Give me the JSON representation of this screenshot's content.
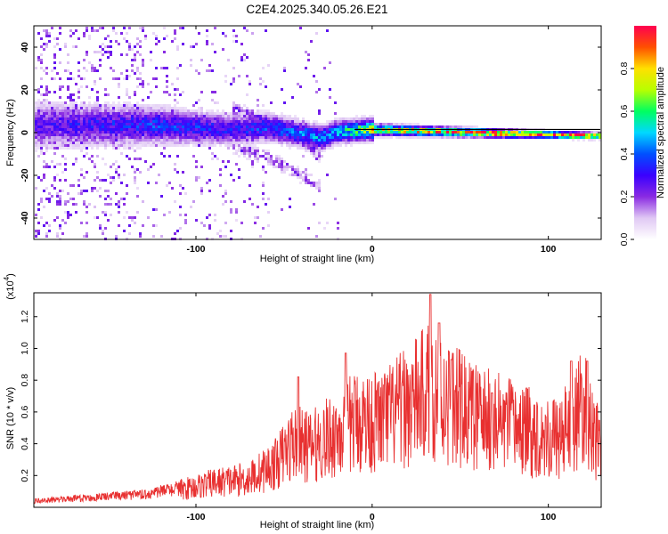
{
  "title": "C2E4.2025.340.05.26.E21",
  "chart_data": [
    {
      "type": "heatmap",
      "name": "spectrogram",
      "xlabel": "Height of straight line (km)",
      "ylabel": "Frequency (Hz)",
      "xlim": [
        -192,
        130
      ],
      "ylim": [
        -50,
        50
      ],
      "xticks": [
        -100,
        0,
        100
      ],
      "xtick_labels": [
        "-100",
        "0",
        "100"
      ],
      "yticks": [
        40,
        20,
        0,
        -20,
        -40
      ],
      "ytick_labels": [
        "40",
        "20",
        "0",
        "-20",
        "-40"
      ],
      "colorbar": {
        "label": "Normalized spectral amplitude",
        "range": [
          0,
          1
        ],
        "ticks": [
          0.0,
          0.2,
          0.4,
          0.6,
          0.8
        ],
        "tick_labels": [
          "0.0",
          "0.2",
          "0.4",
          "0.6",
          "0.8"
        ],
        "colormap": [
          "#ffffff",
          "#e0c8f4",
          "#8a2be2",
          "#3a00ff",
          "#0050ff",
          "#00d8ff",
          "#00ff60",
          "#b8ff00",
          "#ffe000",
          "#ff5000",
          "#ff0050"
        ]
      },
      "band_center": [
        {
          "x": -185,
          "y": 4
        },
        {
          "x": -150,
          "y": 4
        },
        {
          "x": -120,
          "y": 4
        },
        {
          "x": -100,
          "y": 3
        },
        {
          "x": -80,
          "y": 2
        },
        {
          "x": -60,
          "y": 3
        },
        {
          "x": -40,
          "y": 0
        },
        {
          "x": -30,
          "y": -2
        },
        {
          "x": -20,
          "y": 1
        },
        {
          "x": 0,
          "y": 2
        },
        {
          "x": 40,
          "y": 1
        },
        {
          "x": 80,
          "y": 0
        },
        {
          "x": 130,
          "y": -1
        }
      ],
      "band_amplitude": [
        {
          "x": -185,
          "a": 0.25
        },
        {
          "x": -120,
          "a": 0.35
        },
        {
          "x": -80,
          "a": 0.3
        },
        {
          "x": -40,
          "a": 0.4
        },
        {
          "x": -20,
          "a": 0.45
        },
        {
          "x": 0,
          "a": 0.7
        },
        {
          "x": 40,
          "a": 0.8
        },
        {
          "x": 80,
          "a": 0.9
        },
        {
          "x": 130,
          "a": 0.97
        }
      ]
    },
    {
      "type": "line",
      "name": "snr",
      "xlabel": "Height of straight line (km)",
      "ylabel": "SNR (10 * v/v)",
      "yscale_note": "(x10",
      "yscale_exp": "4",
      "yscale_close": ")",
      "xlim": [
        -192,
        130
      ],
      "ylim": [
        0,
        1.35
      ],
      "xticks": [
        -100,
        0,
        100
      ],
      "xtick_labels": [
        "-100",
        "0",
        "100"
      ],
      "yticks": [
        0.2,
        0.4,
        0.6,
        0.8,
        1.0,
        1.2
      ],
      "ytick_labels": [
        "0.2",
        "0.4",
        "0.6",
        "0.8",
        "1.0",
        "1.2"
      ],
      "color": "#e83030",
      "envelope": [
        {
          "x": -192,
          "v": 0.04
        },
        {
          "x": -160,
          "v": 0.06
        },
        {
          "x": -130,
          "v": 0.08
        },
        {
          "x": -110,
          "v": 0.12
        },
        {
          "x": -90,
          "v": 0.17
        },
        {
          "x": -70,
          "v": 0.2
        },
        {
          "x": -55,
          "v": 0.3
        },
        {
          "x": -45,
          "v": 0.45
        },
        {
          "x": -35,
          "v": 0.42
        },
        {
          "x": -22,
          "v": 0.5
        },
        {
          "x": -10,
          "v": 0.6
        },
        {
          "x": 5,
          "v": 0.6
        },
        {
          "x": 20,
          "v": 0.7
        },
        {
          "x": 33,
          "v": 0.82
        },
        {
          "x": 45,
          "v": 0.72
        },
        {
          "x": 60,
          "v": 0.62
        },
        {
          "x": 75,
          "v": 0.58
        },
        {
          "x": 90,
          "v": 0.52
        },
        {
          "x": 105,
          "v": 0.48
        },
        {
          "x": 112,
          "v": 0.55
        },
        {
          "x": 120,
          "v": 0.7
        },
        {
          "x": 130,
          "v": 0.38
        }
      ],
      "peaks": [
        {
          "x": -42,
          "v": 0.82
        },
        {
          "x": -15,
          "v": 0.97
        },
        {
          "x": 33,
          "v": 1.34
        },
        {
          "x": 38,
          "v": 1.16
        },
        {
          "x": 45,
          "v": 0.93
        },
        {
          "x": 68,
          "v": 0.72
        },
        {
          "x": 113,
          "v": 0.92
        },
        {
          "x": 122,
          "v": 0.92
        }
      ]
    }
  ]
}
